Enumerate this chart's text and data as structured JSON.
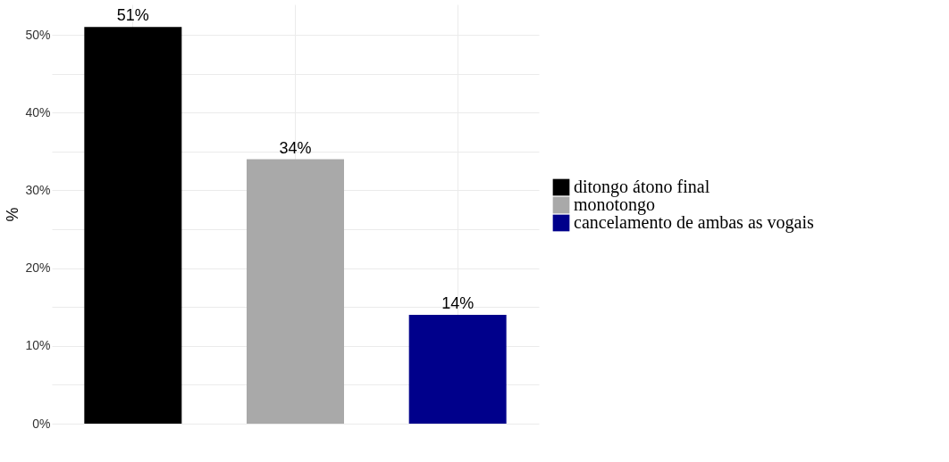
{
  "chart_data": {
    "type": "bar",
    "ylabel": "%",
    "categories": [
      null,
      null,
      null
    ],
    "series": [
      {
        "name": "ditongo átono final",
        "color": "#000000",
        "values": [
          51,
          null,
          null
        ],
        "value_labels": [
          "51%",
          null,
          null
        ]
      },
      {
        "name": "monotongo",
        "color": "#a9a9a9",
        "values": [
          null,
          34,
          null
        ],
        "value_labels": [
          null,
          "34%",
          null
        ]
      },
      {
        "name": "cancelamento de ambas as vogais",
        "color": "#00008b",
        "values": [
          null,
          null,
          14
        ],
        "value_labels": [
          null,
          null,
          "14%"
        ]
      }
    ],
    "ylim": [
      0,
      53.9
    ],
    "yticks": [
      {
        "value": 0,
        "label": "0%"
      },
      {
        "value": 5,
        "label": null
      },
      {
        "value": 10,
        "label": "10%"
      },
      {
        "value": 15,
        "label": null
      },
      {
        "value": 20,
        "label": "20%"
      },
      {
        "value": 25,
        "label": null
      },
      {
        "value": 30,
        "label": "30%"
      },
      {
        "value": 35,
        "label": null
      },
      {
        "value": 40,
        "label": "40%"
      },
      {
        "value": 45,
        "label": null
      },
      {
        "value": 50,
        "label": "50%"
      }
    ],
    "grid": true,
    "legend": "right",
    "tick_labels": "y"
  }
}
